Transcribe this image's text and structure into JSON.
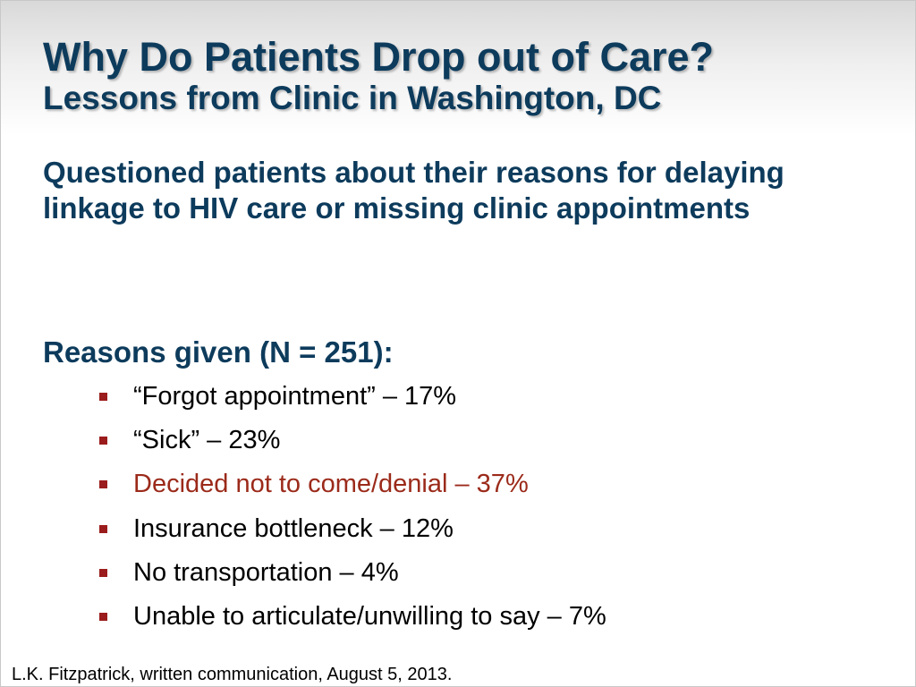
{
  "title": {
    "main": "Why Do Patients Drop out of Care?",
    "sub": "Lessons from Clinic in Washington, DC"
  },
  "intro": "Questioned patients about their reasons for delaying linkage to HIV care or missing clinic appointments",
  "reasons": {
    "heading": "Reasons given (N = 251):",
    "items": [
      {
        "text": "“Forgot appointment” – 17%"
      },
      {
        "text": "“Sick” – 23%"
      },
      {
        "text": "Decided not to come/denial – 37%"
      },
      {
        "text": "Insurance bottleneck – 12%"
      },
      {
        "text": "No transportation – 4%"
      },
      {
        "text": "Unable to articulate/unwilling to say – 7%"
      }
    ]
  },
  "citation": "L.K. Fitzpatrick, written communication, August 5, 2013.",
  "colors": {
    "title": "#0d3b5c",
    "bullet": "#9b1c1c",
    "highlight_text": "#9b2a1a"
  }
}
